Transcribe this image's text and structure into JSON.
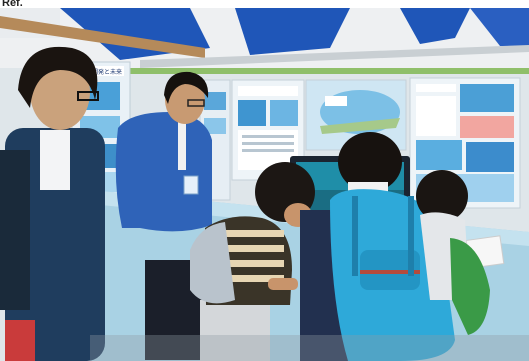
{
  "caption": "Ref.",
  "poster_heading": "海洋開発と未来",
  "colors": {
    "tent_blue": "#1f56b8",
    "tent_white": "#f2f3f4",
    "poster_bg": "#eef4f8",
    "jacket_blue": "#2f63b8",
    "backpack_teal": "#2ea9d9"
  }
}
